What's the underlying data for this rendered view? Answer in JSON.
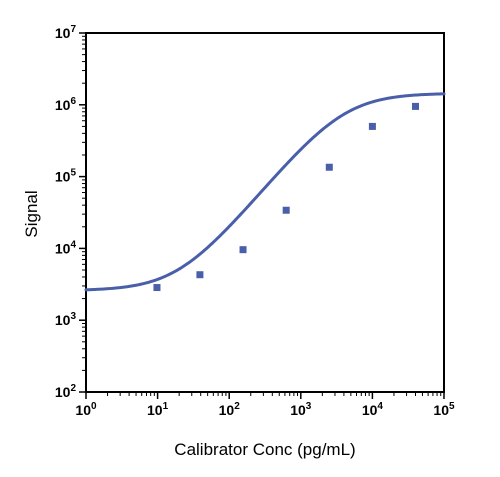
{
  "chart_data": {
    "type": "line",
    "title": "",
    "xlabel": "Calibrator Conc (pg/mL)",
    "ylabel": "Signal",
    "x_scale": "log",
    "y_scale": "log",
    "xlim": [
      1,
      100000
    ],
    "ylim": [
      100,
      10000000
    ],
    "x_ticks": [
      {
        "base": "10",
        "exp": "0",
        "value": 1
      },
      {
        "base": "10",
        "exp": "1",
        "value": 10
      },
      {
        "base": "10",
        "exp": "2",
        "value": 100
      },
      {
        "base": "10",
        "exp": "3",
        "value": 1000
      },
      {
        "base": "10",
        "exp": "4",
        "value": 10000
      },
      {
        "base": "10",
        "exp": "5",
        "value": 100000
      }
    ],
    "y_ticks": [
      {
        "base": "10",
        "exp": "2",
        "value": 100
      },
      {
        "base": "10",
        "exp": "3",
        "value": 1000
      },
      {
        "base": "10",
        "exp": "4",
        "value": 10000
      },
      {
        "base": "10",
        "exp": "5",
        "value": 100000
      },
      {
        "base": "10",
        "exp": "6",
        "value": 1000000
      },
      {
        "base": "10",
        "exp": "7",
        "value": 10000000
      }
    ],
    "grid": false,
    "legend": "none",
    "series": [
      {
        "color": "#4a5faa",
        "marker": "square",
        "points": [
          {
            "x": 9.8,
            "y": 2850
          },
          {
            "x": 39,
            "y": 4300
          },
          {
            "x": 156,
            "y": 9600
          },
          {
            "x": 625,
            "y": 34000
          },
          {
            "x": 2500,
            "y": 135000
          },
          {
            "x": 10000,
            "y": 500000
          },
          {
            "x": 40000,
            "y": 950000
          }
        ],
        "fit": {
          "model": "4PL",
          "x_start": 1,
          "x_end": 100000,
          "bottom": 2580,
          "top": 1450000,
          "ec50": 3900,
          "hill": 1.2
        }
      }
    ]
  }
}
